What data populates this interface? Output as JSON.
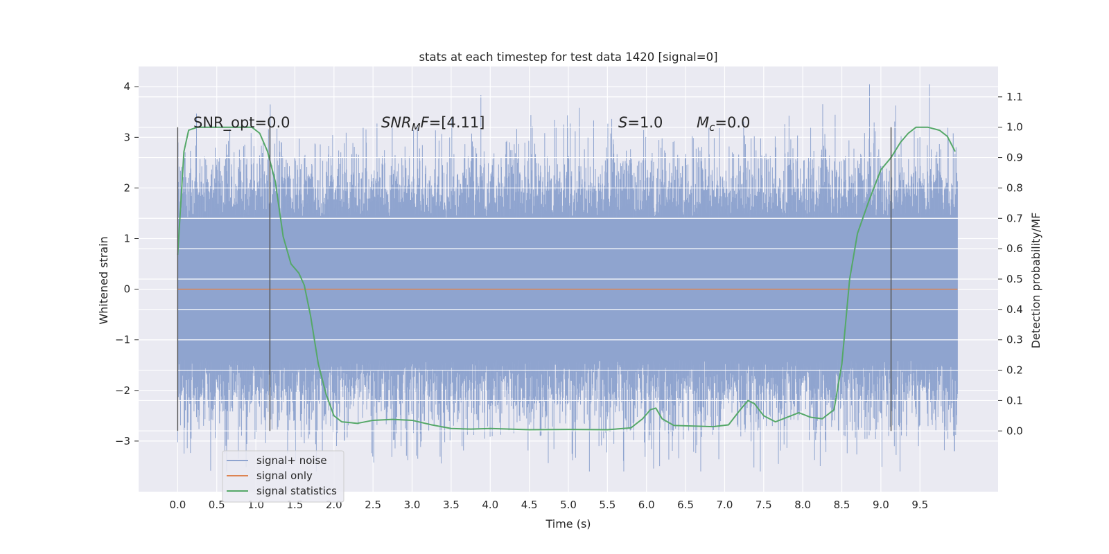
{
  "chart_data": {
    "type": "line",
    "title": "stats at each timestep for test data 1420 [signal=0]",
    "xlabel": "Time (s)",
    "ylabel": "Whitened strain",
    "y2label": "Detection probability/MF",
    "xlim": [
      -0.5,
      10.5
    ],
    "ylim": [
      -4.0,
      4.4
    ],
    "y2lim": [
      -0.2,
      1.2
    ],
    "xticks": [
      "0.0",
      "0.5",
      "1.0",
      "1.5",
      "2.0",
      "2.5",
      "3.0",
      "3.5",
      "4.0",
      "4.5",
      "5.0",
      "5.5",
      "6.0",
      "6.5",
      "7.0",
      "7.5",
      "8.0",
      "8.5",
      "9.0",
      "9.5"
    ],
    "yticks": [
      -3,
      -2,
      -1,
      0,
      1,
      2,
      3,
      4
    ],
    "ytick_labels": [
      "−3",
      "−2",
      "−1",
      "0",
      "1",
      "2",
      "3",
      "4"
    ],
    "y2ticks": [
      "0.0",
      "0.1",
      "0.2",
      "0.3",
      "0.4",
      "0.5",
      "0.6",
      "0.7",
      "0.8",
      "0.9",
      "1.0",
      "1.1"
    ],
    "grid": true,
    "legend_position": "bottom-left",
    "annotations": {
      "snr_opt": "SNR_opt=0.0",
      "snr_mf_italic": "SNR",
      "snr_mf_sub": "M",
      "snr_mf_f": "F",
      "snr_mf_rest": "=[4.11]",
      "s_italic": "S",
      "s_rest": "=1.0",
      "mc_italic": "M",
      "mc_sub": "c",
      "mc_rest": "=0.0"
    },
    "vertical_markers": [
      0.0,
      1.18,
      9.13
    ],
    "series": [
      {
        "name": "signal+ noise",
        "color": "#8fa4cf",
        "kind": "noise_band",
        "x_range": [
          0.0,
          9.98
        ],
        "core_band": [
          -1.4,
          1.4
        ],
        "envelope": [
          -3.6,
          4.05
        ]
      },
      {
        "name": "signal only",
        "color": "#dd8452",
        "x": [
          0.0,
          9.98
        ],
        "y": [
          0.0,
          0.0
        ]
      },
      {
        "name": "signal statistics",
        "color": "#55a868",
        "axis": "right",
        "x": [
          0.0,
          0.08,
          0.14,
          0.25,
          0.5,
          0.75,
          0.95,
          1.05,
          1.15,
          1.25,
          1.35,
          1.45,
          1.55,
          1.62,
          1.7,
          1.8,
          1.9,
          2.0,
          2.1,
          2.3,
          2.5,
          2.75,
          3.0,
          3.25,
          3.5,
          3.75,
          4.0,
          4.25,
          4.5,
          5.0,
          5.5,
          5.8,
          5.95,
          6.05,
          6.12,
          6.2,
          6.35,
          6.6,
          6.85,
          7.05,
          7.2,
          7.3,
          7.38,
          7.5,
          7.65,
          7.8,
          7.95,
          8.1,
          8.25,
          8.4,
          8.5,
          8.6,
          8.7,
          8.85,
          9.0,
          9.13,
          9.25,
          9.35,
          9.45,
          9.6,
          9.75,
          9.85,
          9.95
        ],
        "y": [
          0.58,
          0.92,
          0.99,
          1.0,
          1.0,
          1.0,
          1.0,
          0.98,
          0.92,
          0.82,
          0.64,
          0.55,
          0.52,
          0.48,
          0.38,
          0.22,
          0.12,
          0.05,
          0.03,
          0.025,
          0.035,
          0.038,
          0.035,
          0.02,
          0.008,
          0.006,
          0.008,
          0.006,
          0.004,
          0.005,
          0.004,
          0.01,
          0.04,
          0.07,
          0.075,
          0.04,
          0.018,
          0.016,
          0.014,
          0.02,
          0.07,
          0.1,
          0.09,
          0.05,
          0.03,
          0.045,
          0.06,
          0.045,
          0.04,
          0.07,
          0.22,
          0.5,
          0.65,
          0.76,
          0.86,
          0.9,
          0.95,
          0.98,
          1.0,
          1.0,
          0.99,
          0.97,
          0.92
        ]
      }
    ]
  }
}
